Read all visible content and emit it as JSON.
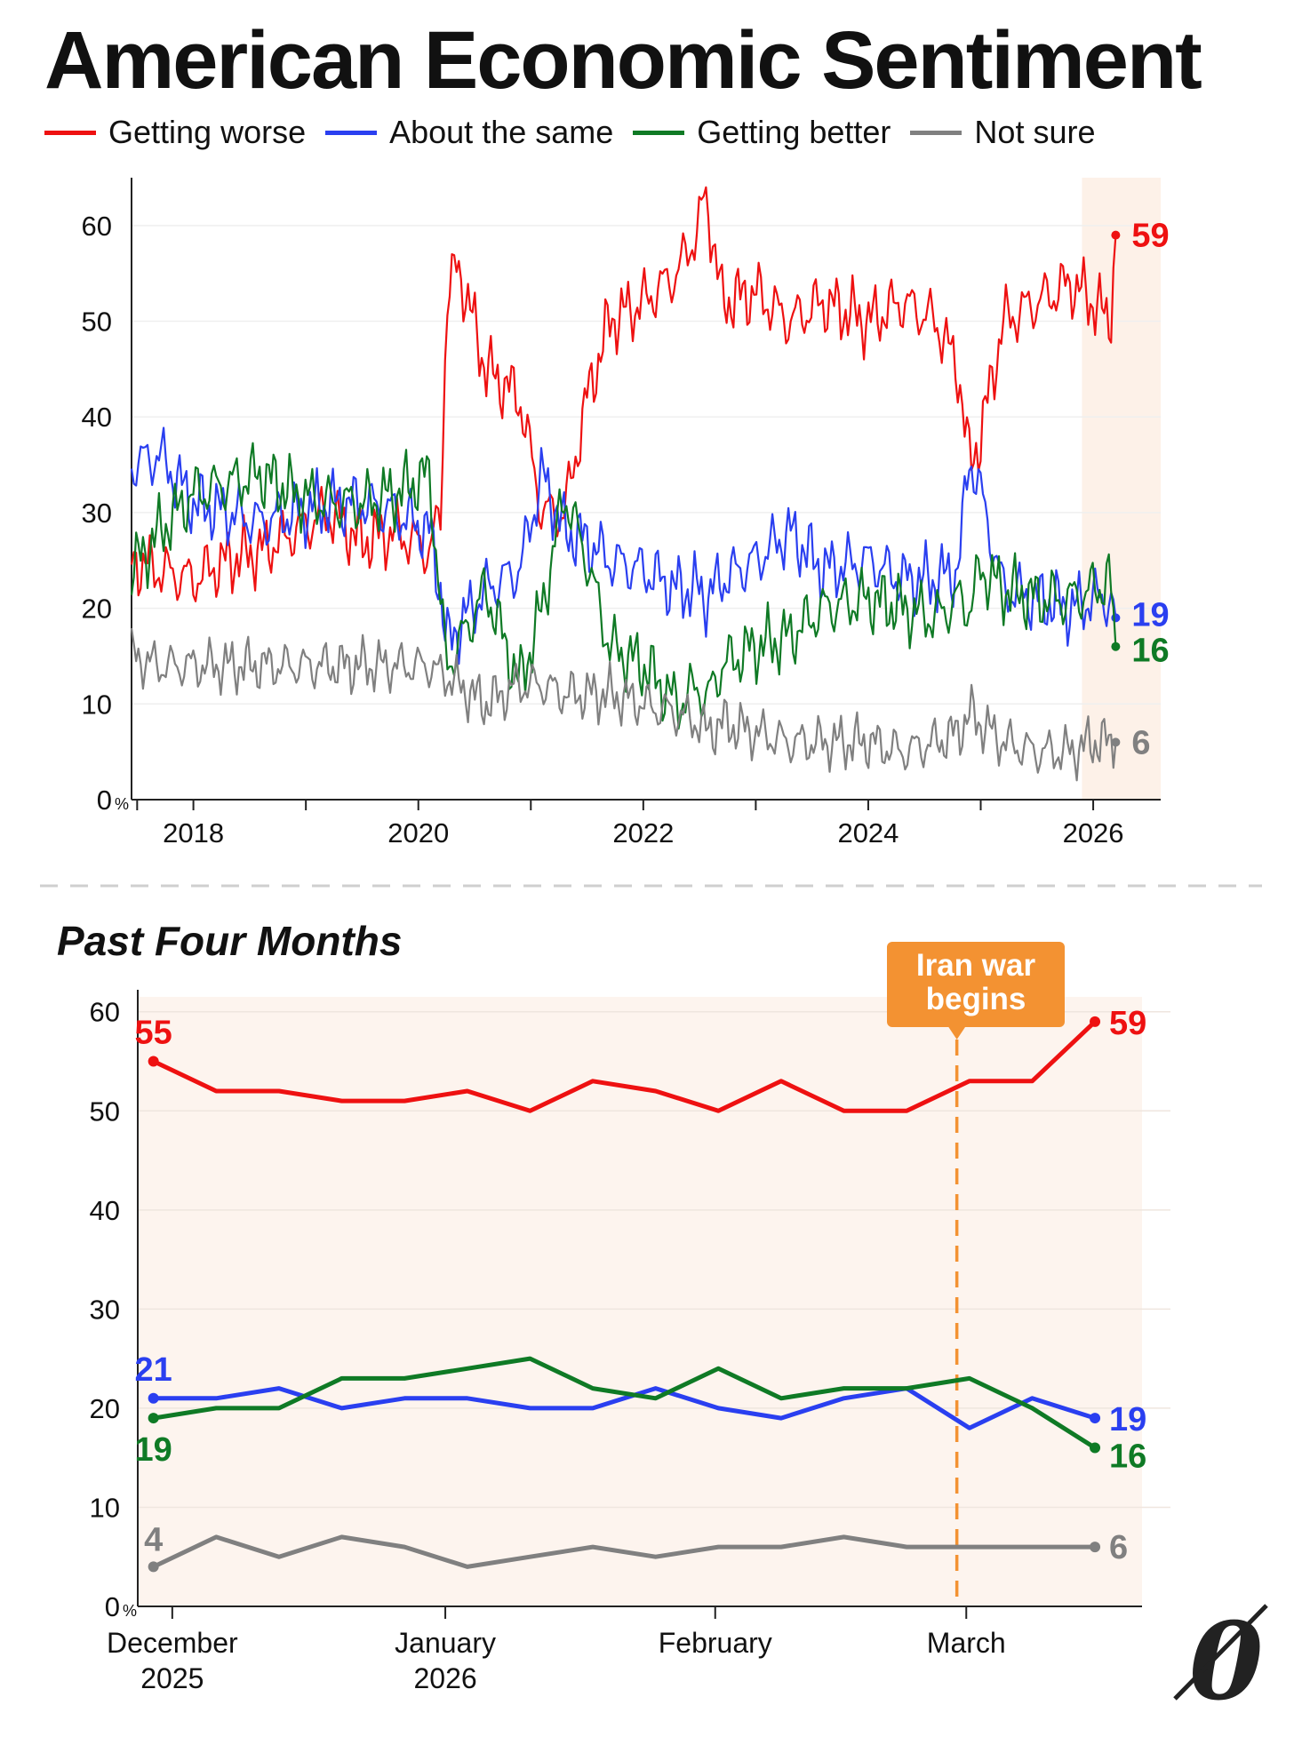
{
  "title": "American Economic Sentiment",
  "subtitle": "Past Four Months",
  "legend": [
    {
      "label": "Getting worse",
      "color": "#ee1111"
    },
    {
      "label": "About the same",
      "color": "#2a3ff0"
    },
    {
      "label": "Getting better",
      "color": "#0f7a25"
    },
    {
      "label": "Not sure",
      "color": "#808080"
    }
  ],
  "annotation": {
    "line1": "Iran war",
    "line2": "begins",
    "color": "#f39232"
  },
  "percent_symbol": "%",
  "logo_text": "0",
  "chart_data": [
    {
      "type": "line",
      "title": "American Economic Sentiment",
      "xlabel": "",
      "ylabel": "%",
      "xlim": [
        2017.45,
        2026.6
      ],
      "ylim": [
        0,
        65
      ],
      "yticks": [
        0,
        10,
        20,
        30,
        40,
        50,
        60
      ],
      "xticks": [
        2018,
        2020,
        2022,
        2024,
        2026
      ],
      "xtick_labels": [
        "2018",
        "2020",
        "2022",
        "2024",
        "2026"
      ],
      "highlight_range": [
        2025.9,
        2026.6
      ],
      "x": [
        2017.45,
        2017.7,
        2018.0,
        2018.3,
        2018.6,
        2018.9,
        2019.2,
        2019.5,
        2019.8,
        2020.1,
        2020.2,
        2020.25,
        2020.35,
        2020.6,
        2020.9,
        2021.1,
        2021.3,
        2021.5,
        2021.7,
        2022.0,
        2022.3,
        2022.5,
        2022.55,
        2022.7,
        2023.0,
        2023.3,
        2023.6,
        2024.0,
        2024.3,
        2024.6,
        2024.8,
        2024.9,
        2025.0,
        2025.2,
        2025.5,
        2025.8,
        2026.0,
        2026.15,
        2026.2
      ],
      "series": [
        {
          "name": "Getting worse",
          "end_label": "59",
          "values": [
            25,
            24,
            23,
            25,
            26,
            28,
            30,
            27,
            28,
            26,
            30,
            52,
            56,
            45,
            42,
            30,
            30,
            42,
            50,
            52,
            55,
            60,
            64,
            52,
            53,
            50,
            52,
            50,
            52,
            50,
            45,
            35,
            38,
            50,
            52,
            54,
            52,
            50,
            59
          ]
        },
        {
          "name": "About the same",
          "end_label": "19",
          "values": [
            35,
            36,
            31,
            30,
            29,
            30,
            31,
            31,
            30,
            28,
            22,
            16,
            18,
            22,
            24,
            34,
            28,
            27,
            25,
            24,
            22,
            22,
            21,
            23,
            25,
            28,
            24,
            25,
            23,
            23,
            24,
            36,
            32,
            22,
            21,
            20,
            21,
            21,
            19
          ]
        },
        {
          "name": "Getting better",
          "end_label": "16",
          "values": [
            24,
            28,
            32,
            33,
            34,
            32,
            31,
            31,
            32,
            34,
            20,
            14,
            16,
            22,
            12,
            20,
            32,
            25,
            16,
            14,
            10,
            12,
            10,
            14,
            16,
            17,
            20,
            21,
            20,
            19,
            21,
            20,
            24,
            22,
            21,
            21,
            22,
            23,
            16
          ]
        },
        {
          "name": "Not sure",
          "end_label": "6",
          "values": [
            15,
            14,
            14,
            14,
            14,
            14,
            14,
            14,
            14,
            14,
            13,
            13,
            12,
            10,
            12,
            12,
            11,
            11,
            11,
            10,
            9,
            8,
            7,
            8,
            7,
            6,
            6,
            6,
            5,
            6,
            7,
            9,
            8,
            6,
            5,
            5,
            6,
            6,
            6
          ]
        }
      ]
    },
    {
      "type": "line",
      "title": "Past Four Months",
      "xlabel": "",
      "ylabel": "%",
      "xlim": [
        -0.25,
        15.75
      ],
      "ylim": [
        0,
        61.5
      ],
      "yticks": [
        0,
        10,
        20,
        30,
        40,
        50,
        60
      ],
      "xticks": [
        0.3,
        4.65,
        8.95,
        12.95
      ],
      "xtick_labels": [
        {
          "month": "December",
          "year": "2025"
        },
        {
          "month": "January",
          "year": "2026"
        },
        {
          "month": "February",
          "year": ""
        },
        {
          "month": "March",
          "year": ""
        }
      ],
      "event_x": 12.8,
      "x": [
        0,
        1,
        2,
        3,
        4,
        5,
        6,
        7,
        8,
        9,
        10,
        11,
        12,
        13,
        14,
        15
      ],
      "series": [
        {
          "name": "Getting worse",
          "start_label": "55",
          "end_label": "59",
          "values": [
            55,
            52,
            52,
            51,
            51,
            52,
            50,
            53,
            52,
            50,
            53,
            50,
            50,
            53,
            53,
            59
          ]
        },
        {
          "name": "About the same",
          "start_label": "21",
          "end_label": "19",
          "values": [
            21,
            21,
            22,
            20,
            21,
            21,
            20,
            20,
            22,
            20,
            19,
            21,
            22,
            18,
            21,
            19
          ]
        },
        {
          "name": "Getting better",
          "start_label": "19",
          "end_label": "16",
          "values": [
            19,
            20,
            20,
            23,
            23,
            24,
            25,
            22,
            21,
            24,
            21,
            22,
            22,
            23,
            20,
            16
          ]
        },
        {
          "name": "Not sure",
          "start_label": "4",
          "end_label": "6",
          "values": [
            4,
            7,
            5,
            7,
            6,
            4,
            5,
            6,
            5,
            6,
            6,
            7,
            6,
            6,
            6,
            6
          ]
        }
      ]
    }
  ]
}
